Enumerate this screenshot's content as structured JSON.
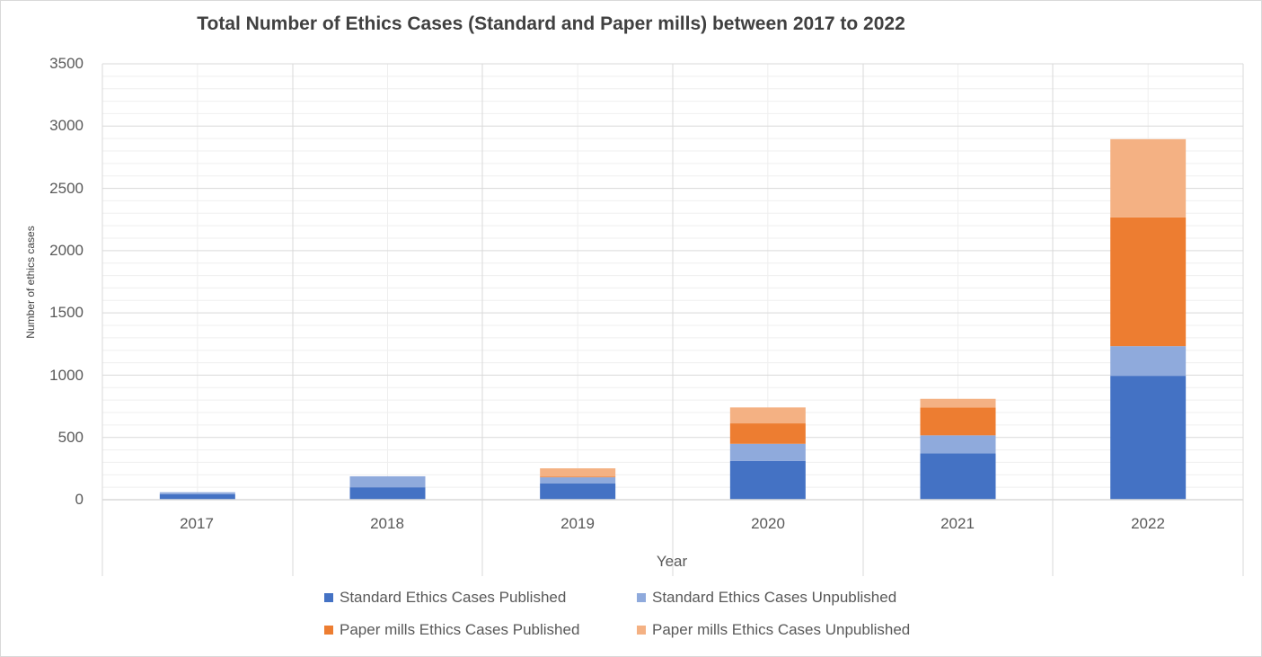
{
  "chart_data": {
    "type": "bar",
    "stacked": true,
    "title": "Total Number of Ethics Cases (Standard and Paper mills) between 2017 to 2022",
    "xlabel": "Year",
    "ylabel": "Number of ethics cases",
    "ylim": [
      0,
      3500
    ],
    "yticks": [
      0,
      500,
      1000,
      1500,
      2000,
      2500,
      3000,
      3500
    ],
    "grid": true,
    "legend_position": "bottom",
    "categories": [
      "2017",
      "2018",
      "2019",
      "2020",
      "2021",
      "2022"
    ],
    "series": [
      {
        "name": "Standard Ethics Cases Published",
        "color": "#4472C4",
        "values": [
          45,
          100,
          130,
          312,
          373,
          995
        ]
      },
      {
        "name": "Standard Ethics Cases Unpublished",
        "color": "#8FAADC",
        "values": [
          15,
          88,
          50,
          137,
          144,
          238
        ]
      },
      {
        "name": "Paper mills Ethics Cases Published",
        "color": "#ED7D31",
        "values": [
          0,
          0,
          6,
          164,
          224,
          1034
        ]
      },
      {
        "name": "Paper mills Ethics Cases Unpublished",
        "color": "#F4B183",
        "values": [
          0,
          0,
          66,
          128,
          69,
          628
        ]
      }
    ]
  },
  "labels": {
    "title": "Total Number of Ethics Cases (Standard and Paper mills) between 2017 to 2022",
    "xlabel": "Year",
    "ylabel": "Number of ethics cases",
    "yticks": [
      "3500",
      "3000",
      "2500",
      "2000",
      "1500",
      "1000",
      "500",
      "0"
    ],
    "xticks": [
      "2017",
      "2018",
      "2019",
      "2020",
      "2021",
      "2022"
    ],
    "legend": [
      "Standard Ethics Cases Published",
      "Standard Ethics Cases Unpublished",
      "Paper mills Ethics Cases Published",
      "Paper mills Ethics Cases Unpublished"
    ]
  },
  "colors": {
    "std_published": "#4472C4",
    "std_unpublished": "#8FAADC",
    "pm_published": "#ED7D31",
    "pm_unpublished": "#F4B183",
    "major_grid": "#d9d9d9",
    "minor_grid": "#efefef"
  }
}
